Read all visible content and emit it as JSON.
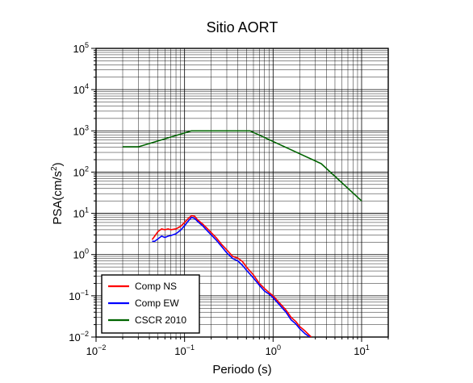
{
  "chart_data": {
    "type": "line",
    "title": "Sitio AORT",
    "xlabel": "Periodo (s)",
    "ylabel_base": "PSA(cm/s",
    "ylabel_sup": "2",
    "ylabel_end": ")",
    "xscale": "log",
    "yscale": "log",
    "xlim": [
      0.01,
      20
    ],
    "ylim": [
      0.01,
      100000
    ],
    "grid": true,
    "legend_position": "bottom-left",
    "x_ticks": [
      {
        "value": 0.01,
        "base": "10",
        "exp": "−2"
      },
      {
        "value": 0.1,
        "base": "10",
        "exp": "−1"
      },
      {
        "value": 1,
        "base": "10",
        "exp": "0"
      },
      {
        "value": 10,
        "base": "10",
        "exp": "1"
      }
    ],
    "y_ticks": [
      {
        "value": 0.01,
        "base": "10",
        "exp": "−2"
      },
      {
        "value": 0.1,
        "base": "10",
        "exp": "−1"
      },
      {
        "value": 1,
        "base": "10",
        "exp": "0"
      },
      {
        "value": 10,
        "base": "10",
        "exp": "1"
      },
      {
        "value": 100,
        "base": "10",
        "exp": "2"
      },
      {
        "value": 1000,
        "base": "10",
        "exp": "3"
      },
      {
        "value": 10000,
        "base": "10",
        "exp": "4"
      },
      {
        "value": 100000,
        "base": "10",
        "exp": "5"
      }
    ],
    "series": [
      {
        "name": "Comp NS",
        "color": "#ff0000",
        "points": [
          [
            0.043,
            2.3
          ],
          [
            0.046,
            2.8
          ],
          [
            0.05,
            3.6
          ],
          [
            0.055,
            4.2
          ],
          [
            0.06,
            4.0
          ],
          [
            0.065,
            4.2
          ],
          [
            0.07,
            4.0
          ],
          [
            0.08,
            4.2
          ],
          [
            0.09,
            4.8
          ],
          [
            0.1,
            6.0
          ],
          [
            0.11,
            7.5
          ],
          [
            0.12,
            8.8
          ],
          [
            0.13,
            8.5
          ],
          [
            0.14,
            7.0
          ],
          [
            0.16,
            5.5
          ],
          [
            0.18,
            4.3
          ],
          [
            0.2,
            3.4
          ],
          [
            0.23,
            2.5
          ],
          [
            0.26,
            1.8
          ],
          [
            0.3,
            1.3
          ],
          [
            0.35,
            0.9
          ],
          [
            0.4,
            0.82
          ],
          [
            0.45,
            0.68
          ],
          [
            0.5,
            0.5
          ],
          [
            0.6,
            0.32
          ],
          [
            0.7,
            0.2
          ],
          [
            0.8,
            0.15
          ],
          [
            0.9,
            0.12
          ],
          [
            1.0,
            0.1
          ],
          [
            1.2,
            0.065
          ],
          [
            1.4,
            0.045
          ],
          [
            1.6,
            0.03
          ],
          [
            1.8,
            0.024
          ],
          [
            2.0,
            0.018
          ],
          [
            2.3,
            0.014
          ],
          [
            2.7,
            0.01
          ]
        ]
      },
      {
        "name": "Comp EW",
        "color": "#0000ff",
        "points": [
          [
            0.043,
            2.1
          ],
          [
            0.046,
            2.1
          ],
          [
            0.05,
            2.4
          ],
          [
            0.055,
            2.8
          ],
          [
            0.06,
            2.6
          ],
          [
            0.065,
            2.8
          ],
          [
            0.07,
            2.9
          ],
          [
            0.08,
            3.2
          ],
          [
            0.09,
            3.9
          ],
          [
            0.1,
            5.0
          ],
          [
            0.11,
            6.5
          ],
          [
            0.12,
            8.0
          ],
          [
            0.13,
            7.5
          ],
          [
            0.14,
            6.4
          ],
          [
            0.16,
            5.0
          ],
          [
            0.18,
            3.8
          ],
          [
            0.2,
            3.0
          ],
          [
            0.23,
            2.2
          ],
          [
            0.26,
            1.6
          ],
          [
            0.3,
            1.1
          ],
          [
            0.35,
            0.8
          ],
          [
            0.4,
            0.7
          ],
          [
            0.45,
            0.55
          ],
          [
            0.5,
            0.42
          ],
          [
            0.6,
            0.27
          ],
          [
            0.7,
            0.18
          ],
          [
            0.8,
            0.13
          ],
          [
            0.9,
            0.11
          ],
          [
            1.0,
            0.09
          ],
          [
            1.2,
            0.058
          ],
          [
            1.4,
            0.04
          ],
          [
            1.6,
            0.026
          ],
          [
            1.8,
            0.021
          ],
          [
            2.0,
            0.016
          ],
          [
            2.3,
            0.012
          ],
          [
            2.6,
            0.01
          ]
        ]
      },
      {
        "name": "CSCR 2010",
        "color": "#006400",
        "points": [
          [
            0.02,
            410
          ],
          [
            0.03,
            410
          ],
          [
            0.12,
            1000
          ],
          [
            0.55,
            1000
          ],
          [
            3.5,
            160
          ],
          [
            10,
            20
          ]
        ]
      }
    ]
  }
}
